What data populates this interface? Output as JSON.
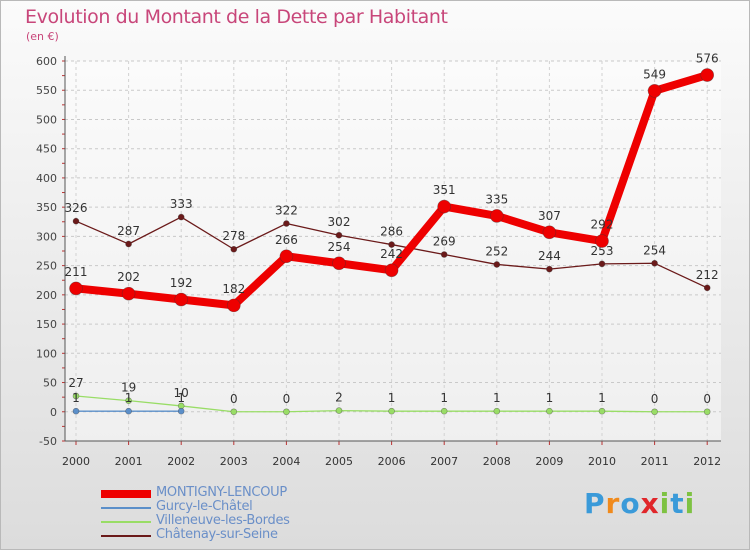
{
  "header": {
    "title": "Evolution du Montant de la Dette par Habitant",
    "unit": "(en €)"
  },
  "chart_data": {
    "type": "line",
    "title": "Evolution du Montant de la Dette par Habitant",
    "ylabel": "(en €)",
    "xlabel": "",
    "ylim": [
      -50,
      600
    ],
    "y_ticks": [
      -50,
      0,
      50,
      100,
      150,
      200,
      250,
      300,
      350,
      400,
      450,
      500,
      550,
      600
    ],
    "grid": true,
    "categories": [
      "2000",
      "2001",
      "2002",
      "2003",
      "2004",
      "2005",
      "2006",
      "2007",
      "2008",
      "2009",
      "2010",
      "2011",
      "2012"
    ],
    "series": [
      {
        "name": "MONTIGNY-LENCOUP",
        "color": "#ee0000",
        "values": [
          211,
          202,
          192,
          182,
          266,
          254,
          242,
          351,
          335,
          307,
          292,
          549,
          576
        ],
        "labels": [
          "211",
          "202",
          "192",
          "182",
          "266",
          "254",
          "242",
          "351",
          "335",
          "307",
          "292",
          "549",
          "576"
        ]
      },
      {
        "name": "Gurcy-le-Châtel",
        "color": "#5b8fc9",
        "values": [
          1,
          1,
          1,
          null,
          null,
          null,
          null,
          null,
          null,
          null,
          null,
          null,
          null
        ],
        "labels": [
          "1",
          "1",
          "1",
          "",
          "",
          "",
          "",
          "",
          "",
          "",
          "",
          "",
          ""
        ]
      },
      {
        "name": "Villeneuve-les-Bordes",
        "color": "#99dd66",
        "values": [
          27,
          19,
          10,
          0,
          0,
          2,
          1,
          1,
          1,
          1,
          1,
          0,
          0
        ],
        "labels": [
          "27",
          "19",
          "10",
          "0",
          "0",
          "2",
          "1",
          "1",
          "1",
          "1",
          "1",
          "0",
          "0"
        ]
      },
      {
        "name": "Châtenay-sur-Seine",
        "color": "#6b1a1a",
        "values": [
          326,
          287,
          333,
          278,
          322,
          302,
          286,
          269,
          252,
          244,
          253,
          254,
          212
        ],
        "labels": [
          "326",
          "287",
          "333",
          "278",
          "322",
          "302",
          "286",
          "269",
          "252",
          "244",
          "253",
          "254",
          "212"
        ]
      }
    ]
  },
  "legend": [
    {
      "label": "MONTIGNY-LENCOUP",
      "color": "#ee0000"
    },
    {
      "label": "Gurcy-le-Châtel",
      "color": "#5b8fc9"
    },
    {
      "label": "Villeneuve-les-Bordes",
      "color": "#99dd66"
    },
    {
      "label": "Châtenay-sur-Seine",
      "color": "#6b1a1a"
    }
  ],
  "logo": {
    "letters": [
      "P",
      "r",
      "o",
      "x",
      "i",
      "t",
      "i"
    ],
    "colors": [
      "#3a9ad9",
      "#f08a1c",
      "#3a9ad9",
      "#e0262a",
      "#7ec242",
      "#3a9ad9",
      "#7ec242"
    ]
  }
}
